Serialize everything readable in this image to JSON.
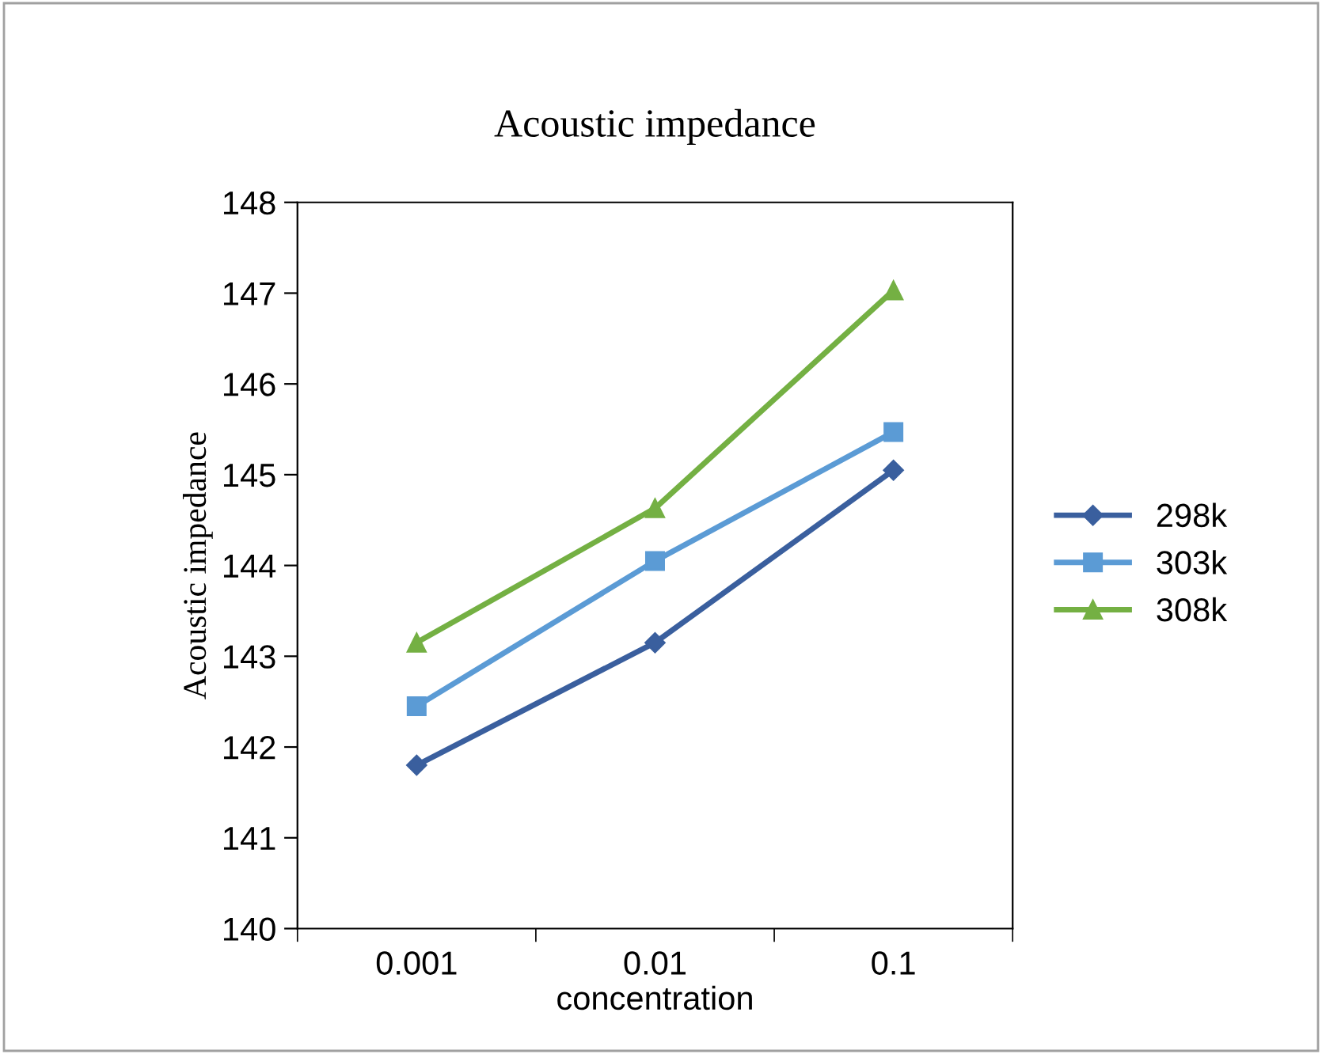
{
  "chart_data": {
    "type": "line",
    "title": "Acoustic impedance",
    "xlabel": "concentration",
    "ylabel": "Acoustic impedance",
    "categories": [
      "0.001",
      "0.01",
      "0.1"
    ],
    "series": [
      {
        "name": "298k",
        "color": "#3a5f9e",
        "marker": "diamond",
        "values": [
          141.8,
          143.15,
          145.05
        ]
      },
      {
        "name": "303k",
        "color": "#5b9bd5",
        "marker": "square",
        "values": [
          142.45,
          144.05,
          145.47
        ]
      },
      {
        "name": "308k",
        "color": "#74b043",
        "marker": "triangle",
        "values": [
          143.15,
          144.63,
          147.03
        ]
      }
    ],
    "ylim": [
      140,
      148
    ],
    "yticks": [
      140,
      141,
      142,
      143,
      144,
      145,
      146,
      147,
      148
    ],
    "grid": false,
    "legend": "right",
    "line_style": "solid"
  }
}
